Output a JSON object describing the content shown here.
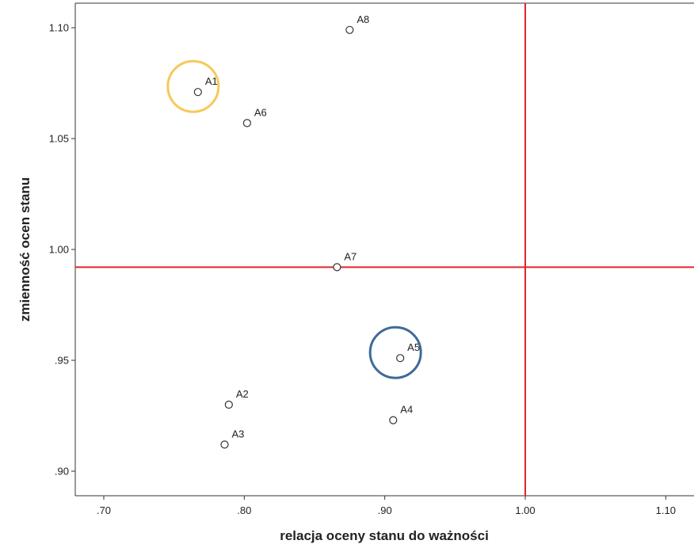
{
  "chart_data": {
    "type": "scatter",
    "xlabel": "relacja oceny stanu do ważności",
    "ylabel": "zmienność ocen stanu",
    "xlim": [
      0.68,
      1.12
    ],
    "ylim": [
      0.89,
      1.112
    ],
    "x_ticks": [
      {
        "value": 0.7,
        "label": ".70"
      },
      {
        "value": 0.8,
        "label": ".80"
      },
      {
        "value": 0.9,
        "label": ".90"
      },
      {
        "value": 1.0,
        "label": "1.00"
      },
      {
        "value": 1.1,
        "label": "1.10"
      }
    ],
    "y_ticks": [
      {
        "value": 0.9,
        "label": ".90"
      },
      {
        "value": 0.95,
        "label": ".95"
      },
      {
        "value": 1.0,
        "label": "1.00"
      },
      {
        "value": 1.05,
        "label": "1.05"
      },
      {
        "value": 1.1,
        "label": "1.10"
      }
    ],
    "points": [
      {
        "label": "A1",
        "x": 0.767,
        "y": 1.071
      },
      {
        "label": "A2",
        "x": 0.789,
        "y": 0.93
      },
      {
        "label": "A3",
        "x": 0.786,
        "y": 0.912
      },
      {
        "label": "A4",
        "x": 0.906,
        "y": 0.923
      },
      {
        "label": "A5",
        "x": 0.911,
        "y": 0.951
      },
      {
        "label": "A6",
        "x": 0.802,
        "y": 1.057
      },
      {
        "label": "A7",
        "x": 0.866,
        "y": 0.992
      },
      {
        "label": "A8",
        "x": 0.875,
        "y": 1.099
      }
    ],
    "reference_lines": {
      "vertical_x": 1.0,
      "horizontal_y": 0.992,
      "color": "#e0242b"
    },
    "highlights": [
      {
        "target": "A1",
        "color": "#f5c95a"
      },
      {
        "target": "A5",
        "color": "#3f6a9a"
      }
    ],
    "grid": false,
    "legend": "none",
    "colors": {
      "marker_stroke": "#333333",
      "axis": "#333333"
    }
  }
}
